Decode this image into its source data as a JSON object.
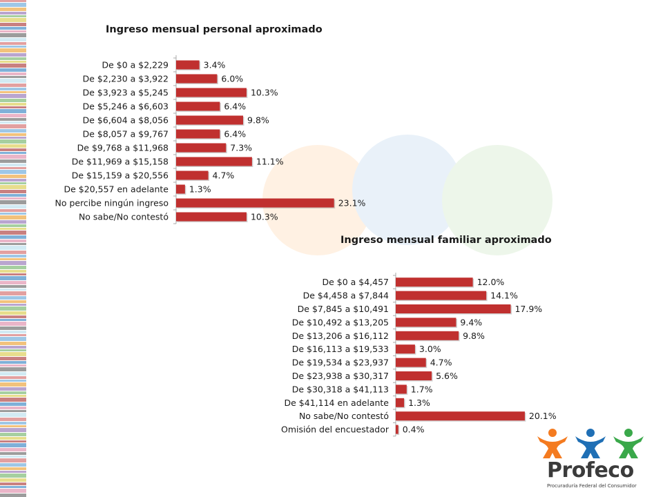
{
  "chart_data": [
    {
      "type": "bar",
      "orientation": "horizontal",
      "title": "Ingreso mensual personal aproximado",
      "categories": [
        "De $0 a $2,229",
        "De $2,230 a $3,922",
        "De $3,923 a $5,245",
        "De $5,246 a $6,603",
        "De $6,604 a $8,056",
        "De $8,057 a $9,767",
        "De $9,768 a $11,968",
        "De $11,969 a $15,158",
        "De $15,159 a $20,556",
        "De $20,557 en adelante",
        "No percibe ningún ingreso",
        "No sabe/No contestó"
      ],
      "values": [
        3.4,
        6.0,
        10.3,
        6.4,
        9.8,
        6.4,
        7.3,
        11.1,
        4.7,
        1.3,
        23.1,
        10.3
      ],
      "value_labels": [
        "3.4%",
        "6.0%",
        "10.3%",
        "6.4%",
        "9.8%",
        "6.4%",
        "7.3%",
        "11.1%",
        "4.7%",
        "1.3%",
        "23.1%",
        "10.3%"
      ],
      "bar_color": "#c0302f",
      "grid": false,
      "legend": "none"
    },
    {
      "type": "bar",
      "orientation": "horizontal",
      "title": "Ingreso mensual familiar aproximado",
      "categories": [
        "De $0 a $4,457",
        "De $4,458 a $7,844",
        "De $7,845 a $10,491",
        "De $10,492 a $13,205",
        "De $13,206 a $16,112",
        "De $16,113 a $19,533",
        "De $19,534 a $23,937",
        "De $23,938 a $30,317",
        "De $30,318 a $41,113",
        "De $41,114 en adelante",
        "No sabe/No contestó",
        "Omisión del encuestador"
      ],
      "values": [
        12.0,
        14.1,
        17.9,
        9.4,
        9.8,
        3.0,
        4.7,
        5.6,
        1.7,
        1.3,
        20.1,
        0.4
      ],
      "value_labels": [
        "12.0%",
        "14.1%",
        "17.9%",
        "9.4%",
        "9.8%",
        "3.0%",
        "4.7%",
        "5.6%",
        "1.7%",
        "1.3%",
        "20.1%",
        "0.4%"
      ],
      "bar_color": "#c0302f",
      "grid": false,
      "legend": "none"
    }
  ],
  "logo": {
    "name": "Profeco",
    "subtitle": "Procuraduría Federal del Consumidor",
    "colors": [
      "#f47b20",
      "#1f6fb5",
      "#3aa84a"
    ]
  },
  "stripe_colors": [
    "#e2a0a0",
    "#9ec7e6",
    "#f2c27c",
    "#b9a5cf",
    "#a6cfa0",
    "#e7dd8c",
    "#c98080",
    "#7fb0d8",
    "#eab5c8",
    "#9c9c9c",
    "#d2eaf3"
  ]
}
